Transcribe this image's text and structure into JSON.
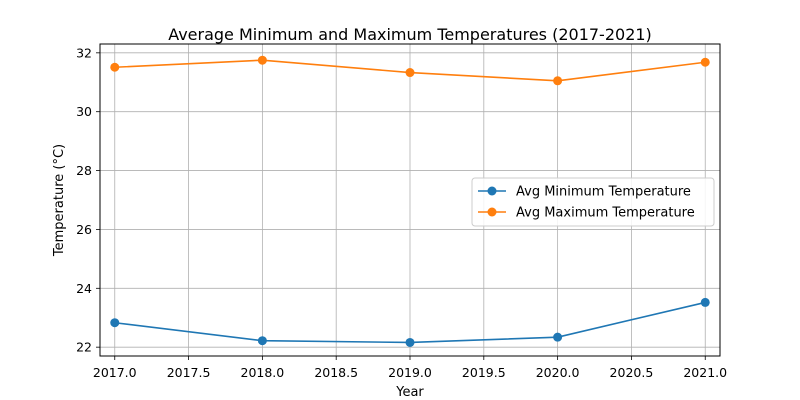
{
  "chart_data": {
    "type": "line",
    "title": "Average Minimum and Maximum Temperatures (2017-2021)",
    "xlabel": "Year",
    "ylabel": "Temperature (°C)",
    "x": [
      2017,
      2018,
      2019,
      2020,
      2021
    ],
    "xlim": [
      2016.9,
      2021.1
    ],
    "ylim": [
      21.7,
      32.3
    ],
    "xticks": [
      2017.0,
      2017.5,
      2018.0,
      2018.5,
      2019.0,
      2019.5,
      2020.0,
      2020.5,
      2021.0
    ],
    "xtick_labels": [
      "2017.0",
      "2017.5",
      "2018.0",
      "2018.5",
      "2019.0",
      "2019.5",
      "2020.0",
      "2020.5",
      "2021.0"
    ],
    "yticks": [
      22,
      24,
      26,
      28,
      30,
      32
    ],
    "ytick_labels": [
      "22",
      "24",
      "26",
      "28",
      "30",
      "32"
    ],
    "grid": true,
    "legend_position": "center-right",
    "series": [
      {
        "name": "Avg Minimum Temperature",
        "color": "#1f77b4",
        "marker": "circle",
        "values": [
          22.83,
          22.22,
          22.16,
          22.34,
          23.52
        ]
      },
      {
        "name": "Avg Maximum Temperature",
        "color": "#ff7f0e",
        "marker": "circle",
        "values": [
          31.51,
          31.75,
          31.33,
          31.05,
          31.68
        ]
      }
    ]
  }
}
